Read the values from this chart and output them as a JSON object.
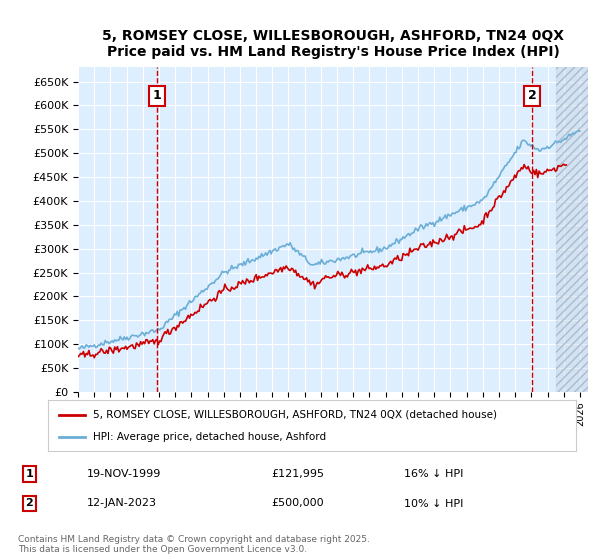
{
  "title1": "5, ROMSEY CLOSE, WILLESBOROUGH, ASHFORD, TN24 0QX",
  "title2": "Price paid vs. HM Land Registry's House Price Index (HPI)",
  "ylabel_ticks": [
    "£0",
    "£50K",
    "£100K",
    "£150K",
    "£200K",
    "£250K",
    "£300K",
    "£350K",
    "£400K",
    "£450K",
    "£500K",
    "£550K",
    "£600K",
    "£650K"
  ],
  "ytick_values": [
    0,
    50000,
    100000,
    150000,
    200000,
    250000,
    300000,
    350000,
    400000,
    450000,
    500000,
    550000,
    600000,
    650000
  ],
  "ylim": [
    0,
    680000
  ],
  "xlim_start": 1995.0,
  "xlim_end": 2026.5,
  "hpi_color": "#6baed6",
  "price_color": "#cc0000",
  "marker1_year": 1999.88,
  "marker1_value": 121995,
  "marker2_year": 2023.04,
  "marker2_value": 500000,
  "legend_label1": "5, ROMSEY CLOSE, WILLESBOROUGH, ASHFORD, TN24 0QX (detached house)",
  "legend_label2": "HPI: Average price, detached house, Ashford",
  "table_row1": [
    "1",
    "19-NOV-1999",
    "£121,995",
    "16% ↓ HPI"
  ],
  "table_row2": [
    "2",
    "12-JAN-2023",
    "£500,000",
    "10% ↓ HPI"
  ],
  "footnote": "Contains HM Land Registry data © Crown copyright and database right 2025.\nThis data is licensed under the Open Government Licence v3.0.",
  "bg_color": "#ffffff",
  "plot_bg_color": "#ddeeff",
  "grid_color": "#ffffff",
  "hatch_color": "#ccccdd"
}
